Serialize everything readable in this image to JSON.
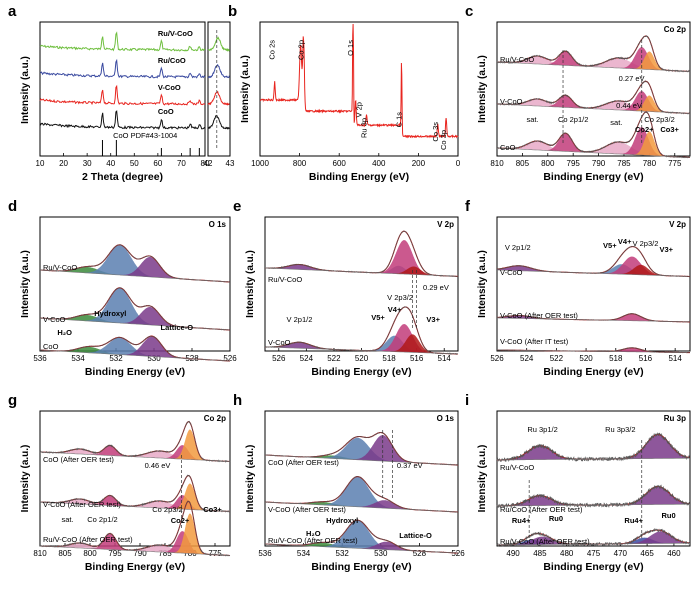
{
  "figure": {
    "panel_letters": [
      "a",
      "b",
      "c",
      "d",
      "e",
      "f",
      "g",
      "h",
      "i"
    ]
  },
  "colors": {
    "red": "#e8251f",
    "black": "#111111",
    "green": "#6fbf3f",
    "blue": "#3a4aa0",
    "pink": "#c23c7a",
    "lightpink": "#e8a9c7",
    "orange": "#f29a3e",
    "purple": "#7a3a8a",
    "steel": "#5a7fb0",
    "darkgreen": "#3b8a3b",
    "dkred": "#b01818",
    "gray": "#888888"
  },
  "chart_data": [
    {
      "panel": "a",
      "type": "line",
      "xlabel": "2 Theta (degree)",
      "ylabel": "Intensity (a.u.)",
      "xlim": [
        10,
        80
      ],
      "xticks": [
        10,
        20,
        30,
        40,
        50,
        60,
        70,
        80
      ],
      "inset_xlim": [
        42,
        43
      ],
      "inset_xticks": [
        42,
        43
      ],
      "reference_label": "CoO PDF#43-1004",
      "reference_lines": [
        36.5,
        42.4,
        61.5,
        73.7,
        77.6
      ],
      "series": [
        {
          "name": "Ru/V-CoO",
          "color": "#6fbf3f",
          "offset": 3
        },
        {
          "name": "Ru/CoO",
          "color": "#3a4aa0",
          "offset": 2
        },
        {
          "name": "V-CoO",
          "color": "#e8251f",
          "offset": 1
        },
        {
          "name": "CoO",
          "color": "#111111",
          "offset": 0
        }
      ]
    },
    {
      "panel": "b",
      "type": "line",
      "xlabel": "Binding Energy (eV)",
      "ylabel": "Intensity (a.u.)",
      "xlim": [
        1000,
        0
      ],
      "xticks": [
        1000,
        800,
        600,
        400,
        200,
        0
      ],
      "peaks": [
        {
          "label": "Co 2s",
          "x": 926
        },
        {
          "label": "Co 2p",
          "x": 780
        },
        {
          "label": "O 1s",
          "x": 530
        },
        {
          "label": "V 2p",
          "x": 517
        },
        {
          "label": "Ru 3p",
          "x": 462
        },
        {
          "label": "C 1s",
          "x": 285
        },
        {
          "label": "Co 3s",
          "x": 102
        },
        {
          "label": "Co 3p",
          "x": 60
        }
      ]
    },
    {
      "panel": "c",
      "type": "line",
      "corner_label": "Co 2p",
      "xlabel": "Binding Energy (eV)",
      "ylabel": "Intensity (a.u.)",
      "xlim": [
        810,
        772
      ],
      "xticks": [
        810,
        805,
        800,
        795,
        790,
        785,
        780,
        775
      ],
      "samples": [
        "Ru/V-CoO",
        "V-CoO",
        "CoO"
      ],
      "labels": [
        "sat.",
        "Co 2p1/2",
        "sat.",
        "Co 2p3/2",
        "Co2+",
        "Co3+"
      ],
      "shifts": [
        "0.27 eV",
        "0.44 eV"
      ]
    },
    {
      "panel": "d",
      "type": "line",
      "corner_label": "O 1s",
      "xlabel": "Binding Energy (eV)",
      "ylabel": "Intensity (a.u.)",
      "xlim": [
        536,
        526
      ],
      "xticks": [
        536,
        534,
        532,
        530,
        528,
        526
      ],
      "samples": [
        "Ru/V-CoO",
        "V-CoO",
        "CoO"
      ],
      "labels": [
        "H2Oads",
        "Hydroxyl",
        "Lattice-O"
      ]
    },
    {
      "panel": "e",
      "type": "line",
      "corner_label": "V 2p",
      "xlabel": "Binding Energy (eV)",
      "ylabel": "Intensity (a.u.)",
      "xlim": [
        527,
        513
      ],
      "xticks": [
        526,
        524,
        522,
        520,
        518,
        516,
        514
      ],
      "samples": [
        "Ru/V-CoO",
        "V-CoO"
      ],
      "labels": [
        "V 2p1/2",
        "V 2p3/2",
        "V5+",
        "V4+",
        "V3+"
      ],
      "shifts": [
        "0.29 eV"
      ]
    },
    {
      "panel": "f",
      "type": "line",
      "corner_label": "V 2p",
      "xlabel": "Binding Energy (eV)",
      "ylabel": "Intensity (a.u.)",
      "xlim": [
        526,
        513
      ],
      "xticks": [
        526,
        524,
        522,
        520,
        518,
        516,
        514
      ],
      "samples": [
        "V-CoO",
        "V-CoO (After OER test)",
        "V-CoO (After IT test)"
      ],
      "labels": [
        "V 2p1/2",
        "V5+",
        "V4+",
        "V 2p3/2",
        "V3+"
      ]
    },
    {
      "panel": "g",
      "type": "line",
      "corner_label": "Co 2p",
      "xlabel": "Binding Energy (eV)",
      "ylabel": "Intensity (a.u.)",
      "xlim": [
        810,
        772
      ],
      "xticks": [
        810,
        805,
        800,
        795,
        790,
        785,
        780,
        775
      ],
      "samples": [
        "CoO (After OER test)",
        "V-CoO (After OER test)",
        "Ru/V-CoO (After OER test)"
      ],
      "labels": [
        "sat.",
        "Co 2p1/2",
        "Co 2p3/2",
        "Co2+",
        "Co3+"
      ],
      "shifts": [
        "0.46 eV"
      ]
    },
    {
      "panel": "h",
      "type": "line",
      "corner_label": "O 1s",
      "xlabel": "Binding Energy (eV)",
      "ylabel": "Intensity (a.u.)",
      "xlim": [
        536,
        526
      ],
      "xticks": [
        536,
        534,
        532,
        530,
        528,
        526
      ],
      "samples": [
        "CoO (After OER test)",
        "V-CoO (After OER test)",
        "Ru/V-CoO (After OER test)"
      ],
      "labels": [
        "H2Oads",
        "Hydroxyl",
        "Lattice-O"
      ],
      "shifts": [
        "0.37 eV"
      ]
    },
    {
      "panel": "i",
      "type": "line",
      "corner_label": "Ru 3p",
      "xlabel": "Binding Energy (eV)",
      "ylabel": "Intensity (a.u.)",
      "xlim": [
        493,
        457
      ],
      "xticks": [
        490,
        485,
        480,
        475,
        470,
        465,
        460
      ],
      "samples": [
        "Ru/V-CoO",
        "Ru/CoO (After OER test)",
        "Ru/V-CoO (After OER test)"
      ],
      "labels": [
        "Ru 3p1/2",
        "Ru 3p3/2",
        "Ru4+",
        "Ru0",
        "Ru4+",
        "Ru0"
      ]
    }
  ]
}
